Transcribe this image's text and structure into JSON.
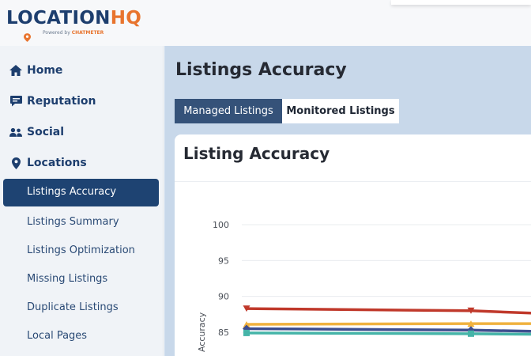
{
  "header": {
    "logo_text_main": "LOCATION",
    "logo_text_accent": "HQ",
    "logo_tagline": "Powered by",
    "logo_tagline_brand": "CHATMETER"
  },
  "sidebar": {
    "items": [
      {
        "label": "Home",
        "icon": "home-icon"
      },
      {
        "label": "Reputation",
        "icon": "comment-icon"
      },
      {
        "label": "Social",
        "icon": "users-icon"
      },
      {
        "label": "Locations",
        "icon": "map-marker-icon"
      }
    ],
    "sub_items": [
      {
        "label": "Listings Accuracy",
        "active": true
      },
      {
        "label": "Listings Summary",
        "active": false
      },
      {
        "label": "Listings Optimization",
        "active": false
      },
      {
        "label": "Missing Listings",
        "active": false
      },
      {
        "label": "Duplicate Listings",
        "active": false
      },
      {
        "label": "Local Pages",
        "active": false
      }
    ]
  },
  "main": {
    "title": "Listings Accuracy",
    "tabs": [
      {
        "label": "Managed Listings",
        "active": true
      },
      {
        "label": "Monitored Listings",
        "active": false
      }
    ],
    "card_title": "Listing Accuracy"
  },
  "colors": {
    "brand_navy": "#1d3e6e",
    "brand_orange": "#e8742e",
    "active_nav": "#1e4372",
    "content_bg": "#c8d8ea"
  },
  "chart_data": {
    "type": "line",
    "ylabel": "Accuracy",
    "yticks": [
      100,
      95,
      90,
      85
    ],
    "ylim": [
      83,
      102
    ],
    "x": [
      0,
      1,
      2
    ],
    "series": [
      {
        "color": "#c0392b",
        "marker": "triangle-down",
        "values": [
          88.3,
          88.0,
          87.6
        ]
      },
      {
        "color": "#f0b23f",
        "marker": "triangle-up",
        "values": [
          86.1,
          86.2,
          86.2
        ]
      },
      {
        "color": "#3d4e8f",
        "marker": "diamond",
        "values": [
          85.5,
          85.3,
          85.1
        ]
      },
      {
        "color": "#45b4a8",
        "marker": "square",
        "values": [
          84.9,
          84.8,
          84.7
        ]
      }
    ],
    "grid": true
  }
}
